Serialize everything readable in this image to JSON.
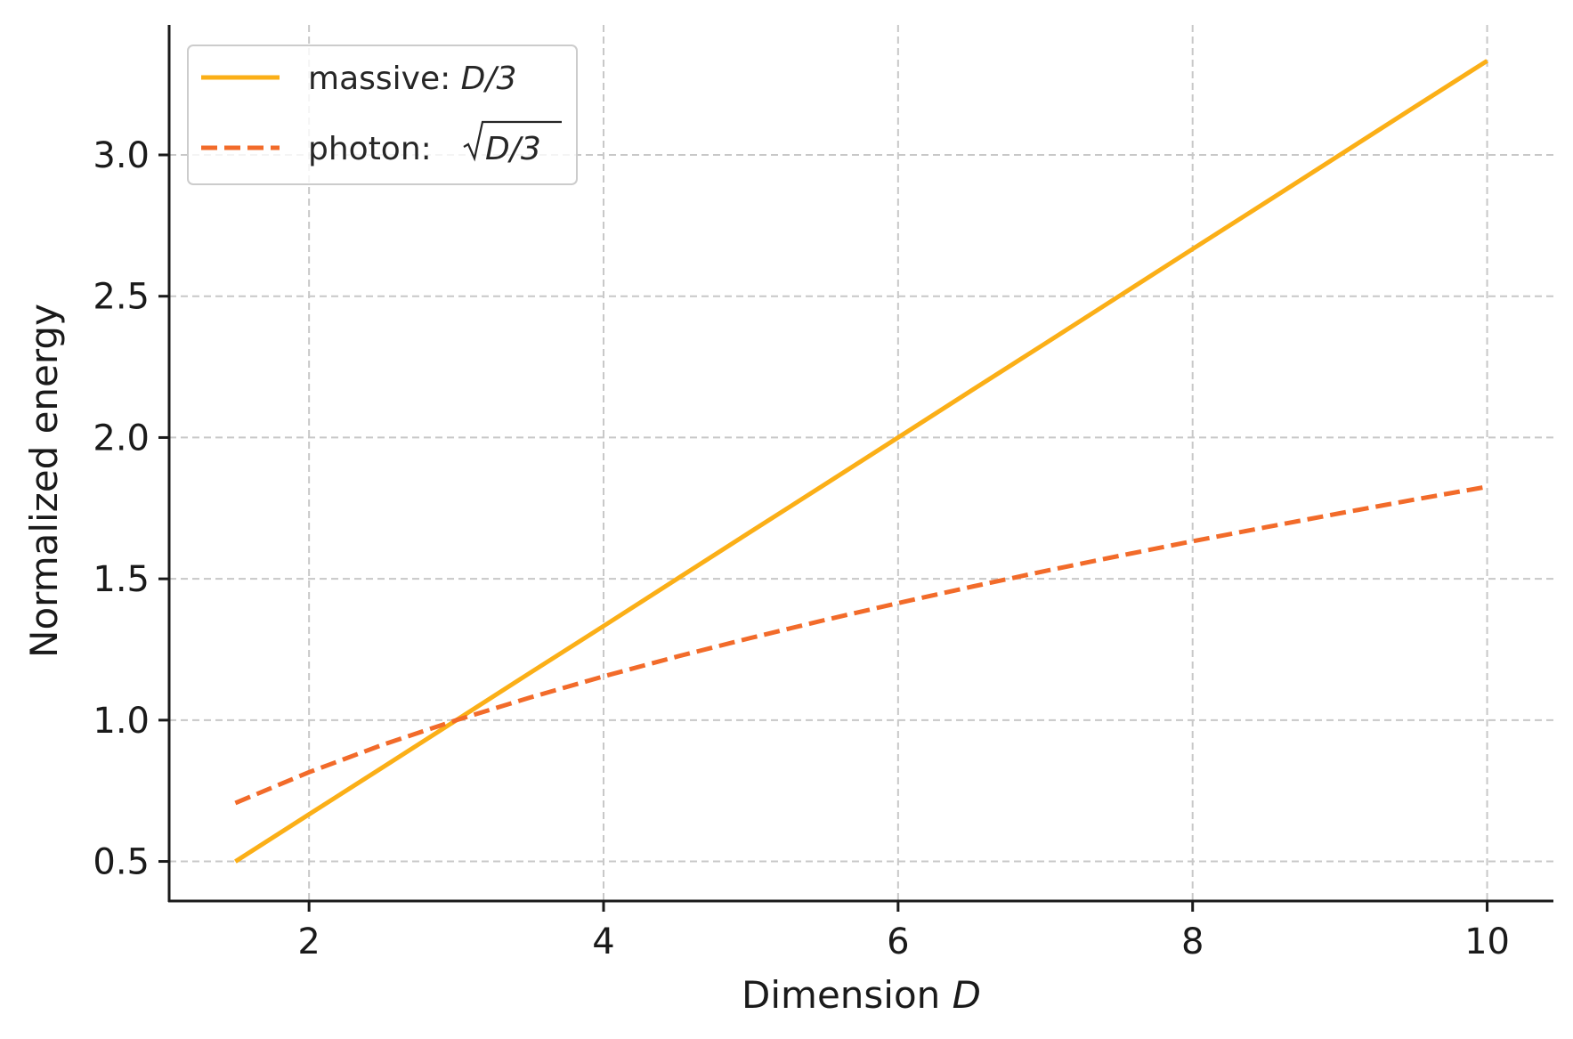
{
  "chart_data": {
    "type": "line",
    "xlabel": "Dimension ",
    "xlabel_var": "D",
    "ylabel": "Normalized energy",
    "xlim": [
      1.05,
      10.45
    ],
    "ylim": [
      0.36,
      3.46
    ],
    "xticks": [
      2,
      4,
      6,
      8,
      10
    ],
    "yticks": [
      0.5,
      1.0,
      1.5,
      2.0,
      2.5,
      3.0
    ],
    "xtick_labels": [
      "2",
      "4",
      "6",
      "8",
      "10"
    ],
    "ytick_labels": [
      "0.5",
      "1.0",
      "1.5",
      "2.0",
      "2.5",
      "3.0"
    ],
    "grid": true,
    "legend_position": "top-left",
    "x": [
      1.5,
      2.0,
      2.5,
      3.0,
      3.5,
      4.0,
      4.5,
      5.0,
      5.5,
      6.0,
      6.5,
      7.0,
      7.5,
      8.0,
      8.5,
      9.0,
      9.5,
      10.0
    ],
    "series": [
      {
        "name": "massive: D/3",
        "legend_prefix": "massive: ",
        "legend_math": "D/3",
        "color": "#FBAF17",
        "style": "solid",
        "values": [
          0.5,
          0.667,
          0.833,
          1.0,
          1.167,
          1.333,
          1.5,
          1.667,
          1.833,
          2.0,
          2.167,
          2.333,
          2.5,
          2.667,
          2.833,
          3.0,
          3.167,
          3.333
        ]
      },
      {
        "name": "photon: √(D/3)",
        "legend_prefix": "photon: ",
        "legend_math": "D/3",
        "color": "#F26B2A",
        "style": "dashed",
        "values": [
          0.707,
          0.816,
          0.913,
          1.0,
          1.08,
          1.155,
          1.225,
          1.291,
          1.354,
          1.414,
          1.472,
          1.528,
          1.581,
          1.633,
          1.683,
          1.732,
          1.78,
          1.826
        ]
      }
    ]
  }
}
